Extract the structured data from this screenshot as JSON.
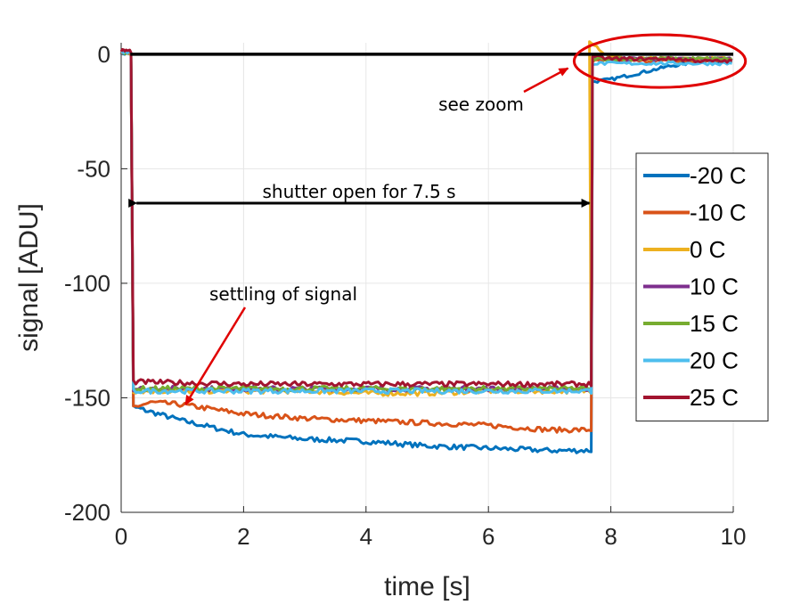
{
  "chart_data": {
    "type": "line",
    "title": "",
    "xlabel": "time [s]",
    "ylabel": "signal [ADU]",
    "xlim": [
      0,
      10
    ],
    "ylim": [
      -200,
      5
    ],
    "xticks": [
      0,
      2,
      4,
      6,
      8,
      10
    ],
    "yticks": [
      0,
      -50,
      -100,
      -150,
      -200
    ],
    "grid": true,
    "legend_position": "right",
    "shutter_open_s": 0.2,
    "shutter_close_s": 7.7,
    "series": [
      {
        "name": "-20 C",
        "color": "#0072BD",
        "offset": -0.5,
        "plateau": [
          [
            0.2,
            -154
          ],
          [
            1.0,
            -160
          ],
          [
            2.0,
            -166
          ],
          [
            3.0,
            -168
          ],
          [
            4.0,
            -169
          ],
          [
            5.0,
            -171
          ],
          [
            6.0,
            -172
          ],
          [
            7.0,
            -173
          ],
          [
            7.7,
            -173
          ]
        ],
        "recovery": [
          [
            7.7,
            -12
          ],
          [
            8.0,
            -11
          ],
          [
            8.5,
            -8
          ],
          [
            9.0,
            -5
          ],
          [
            9.5,
            -3
          ],
          [
            10.0,
            -3
          ]
        ]
      },
      {
        "name": "-10 C",
        "color": "#D95319",
        "offset": -0.5,
        "plateau": [
          [
            0.2,
            -154
          ],
          [
            0.5,
            -152
          ],
          [
            1.0,
            -153
          ],
          [
            2.0,
            -157
          ],
          [
            3.0,
            -159
          ],
          [
            4.0,
            -160
          ],
          [
            5.0,
            -161
          ],
          [
            6.0,
            -162
          ],
          [
            7.0,
            -164
          ],
          [
            7.7,
            -164
          ]
        ],
        "recovery": [
          [
            7.7,
            -3
          ],
          [
            8.0,
            -3
          ],
          [
            9.0,
            -3
          ],
          [
            10.0,
            -3
          ]
        ]
      },
      {
        "name": "0 C",
        "color": "#EDB120",
        "offset": -0.3,
        "plateau": [
          [
            0.2,
            -147
          ],
          [
            1.0,
            -147
          ],
          [
            2.0,
            -147
          ],
          [
            3.0,
            -147
          ],
          [
            4.0,
            -148
          ],
          [
            5.0,
            -148
          ],
          [
            6.0,
            -147
          ],
          [
            7.0,
            -147
          ],
          [
            7.7,
            -147
          ]
        ],
        "recovery": [
          [
            7.65,
            6
          ],
          [
            7.75,
            4
          ],
          [
            7.9,
            0
          ],
          [
            8.2,
            -2
          ],
          [
            9.0,
            -2
          ],
          [
            10.0,
            -2
          ]
        ]
      },
      {
        "name": "10 C",
        "color": "#7E2F8E",
        "offset": 0.2,
        "plateau": [
          [
            0.2,
            -146
          ],
          [
            2.0,
            -146
          ],
          [
            4.0,
            -146
          ],
          [
            6.0,
            -146
          ],
          [
            7.7,
            -146
          ]
        ],
        "recovery": [
          [
            7.7,
            -2
          ],
          [
            8.5,
            -2
          ],
          [
            9.5,
            -2
          ],
          [
            10.0,
            -2
          ]
        ]
      },
      {
        "name": "15 C",
        "color": "#77AC30",
        "offset": 0.0,
        "plateau": [
          [
            0.2,
            -146
          ],
          [
            2.0,
            -146
          ],
          [
            4.0,
            -146
          ],
          [
            6.0,
            -146
          ],
          [
            7.7,
            -146
          ]
        ],
        "recovery": [
          [
            7.7,
            -2
          ],
          [
            8.5,
            -2
          ],
          [
            9.5,
            -2
          ],
          [
            10.0,
            -2
          ]
        ]
      },
      {
        "name": "20 C",
        "color": "#4DBEEE",
        "offset": 0.0,
        "plateau": [
          [
            0.2,
            -147
          ],
          [
            2.0,
            -147
          ],
          [
            4.0,
            -147
          ],
          [
            6.0,
            -147
          ],
          [
            7.7,
            -147
          ]
        ],
        "recovery": [
          [
            7.7,
            -4
          ],
          [
            8.5,
            -4
          ],
          [
            9.5,
            -4
          ],
          [
            10.0,
            -4
          ]
        ]
      },
      {
        "name": "25 C",
        "color": "#A2142F",
        "offset": 0.8,
        "plateau": [
          [
            0.2,
            -143
          ],
          [
            2.0,
            -144
          ],
          [
            4.0,
            -144
          ],
          [
            6.0,
            -144
          ],
          [
            7.7,
            -144
          ]
        ],
        "recovery": [
          [
            7.7,
            -1
          ],
          [
            8.0,
            -2
          ],
          [
            9.0,
            -2
          ],
          [
            9.5,
            -3
          ],
          [
            10.0,
            -3
          ]
        ]
      }
    ],
    "reference_line": {
      "y": 0,
      "color": "#000000"
    },
    "annotations": {
      "shutter_text": "shutter open for 7.5 s",
      "shutter_arrow": {
        "x_start": 0.25,
        "x_end": 7.65,
        "y": -65
      },
      "settling_text": "settling of signal",
      "settling_arrow": {
        "x": 1.05,
        "y": -153
      },
      "zoom_text": "see zoom",
      "zoom_arrow": {
        "x": 7.3,
        "y": -3
      },
      "zoom_ellipse": {
        "x_center": 8.8,
        "y_center": -3,
        "x_radius": 1.4,
        "y_radius": 11.5,
        "color": "#E00000"
      }
    }
  }
}
